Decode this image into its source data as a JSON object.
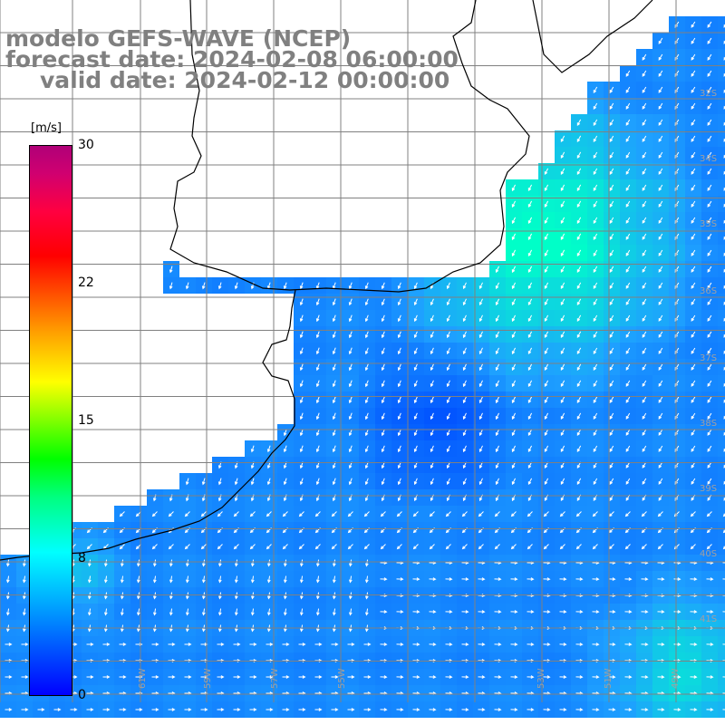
{
  "title": {
    "line1": "modelo GEFS-WAVE (NCEP)",
    "line2": "forecast date: 2024-02-08 06:00:00",
    "line3": "valid date: 2024-02-12 00:00:00"
  },
  "colorbar": {
    "unit": "[m/s]",
    "ticks": [
      "30",
      "22",
      "15",
      "8",
      "0"
    ],
    "tick_values": [
      30,
      22,
      15,
      8,
      0
    ],
    "colors": [
      "#0000ff",
      "#00b4ff",
      "#00ffff",
      "#00ff00",
      "#ffff00",
      "#ff0000",
      "#b00078"
    ]
  },
  "map": {
    "lat_labels": [
      "32S",
      "34S",
      "35S",
      "36S",
      "37S",
      "38S",
      "39S",
      "40S",
      "41S"
    ],
    "lon_labels": [
      "61W",
      "59W",
      "57W",
      "55W",
      "53W",
      "51W",
      "49W"
    ],
    "colors": {
      "ocean_low": "#0050ff",
      "ocean_mid": "#1ea0ff",
      "ocean_high": "#00ffc8",
      "land": "#ffffff",
      "coast": "#000000",
      "grid": "#808080",
      "arrow": "#ffffff"
    }
  }
}
